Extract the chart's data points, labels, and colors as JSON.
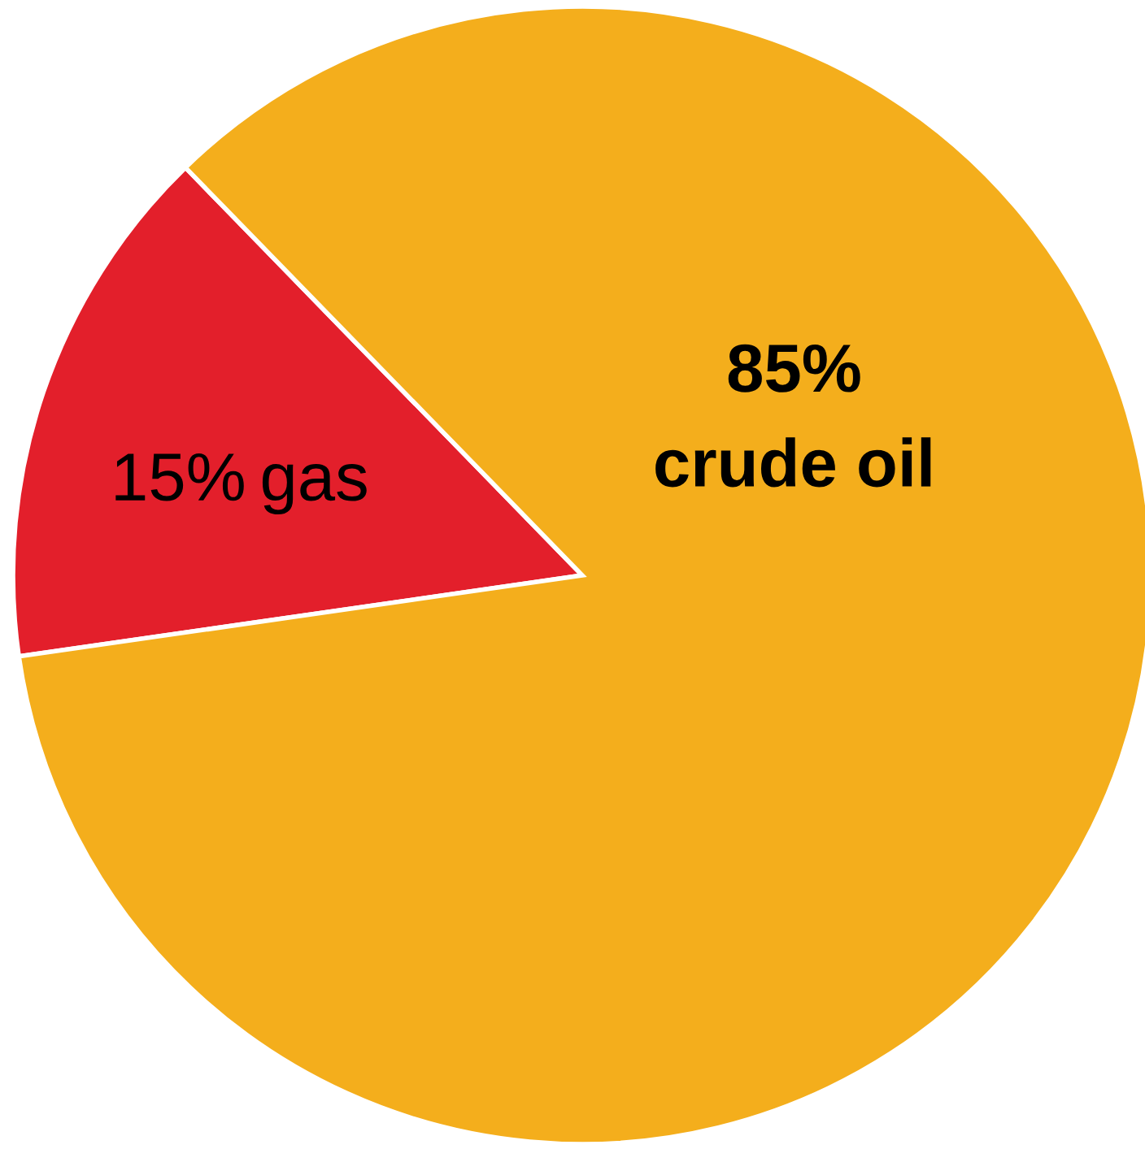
{
  "chart_data": {
    "type": "pie",
    "categories": [
      "gas",
      "crude oil"
    ],
    "values": [
      15,
      85
    ],
    "colors": [
      "#e31f2b",
      "#f4ae1c"
    ],
    "value_labels": [
      "15%",
      "85%"
    ]
  }
}
